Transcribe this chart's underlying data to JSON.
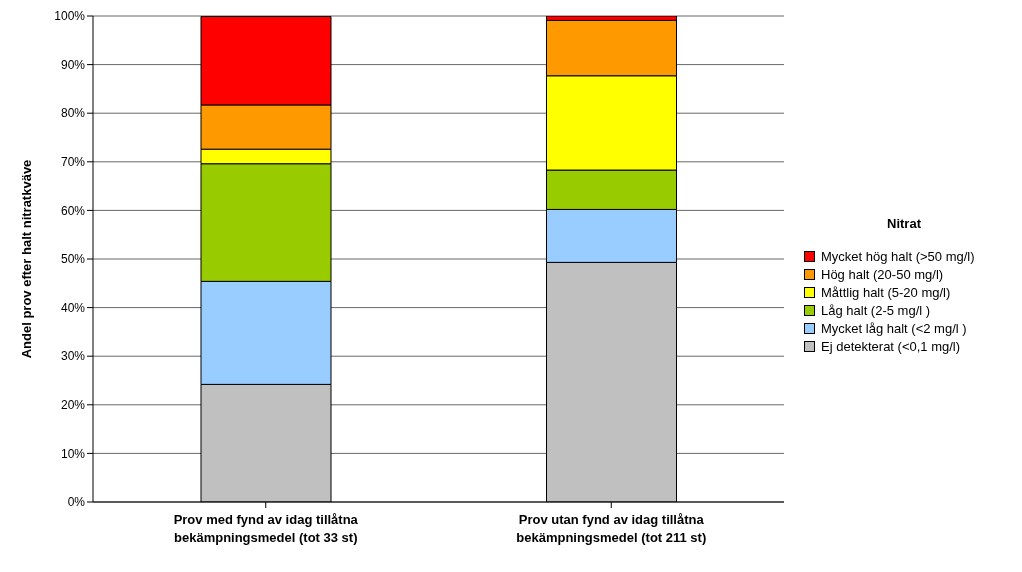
{
  "chart_data": {
    "type": "bar",
    "stacked": true,
    "ylabel": "Andel prov efter halt nitratkväve",
    "legend_title": "Nitrat",
    "legend": "right",
    "categories": [
      "Prov med fynd av idag tillåtna bekämpningsmedel (tot 33 st)",
      "Prov utan fynd av idag tillåtna bekämpningsmedel (tot 211 st)"
    ],
    "series": [
      {
        "name": "Ej detekterat (<0,1 mg/l)",
        "color": "#c0c0c0",
        "values": [
          24.2,
          49.3
        ]
      },
      {
        "name": "Mycket låg halt (<2 mg/l )",
        "color": "#99ccff",
        "values": [
          21.2,
          10.9
        ]
      },
      {
        "name": "Låg halt (2-5 mg/l )",
        "color": "#99cc00",
        "values": [
          24.2,
          8.1
        ]
      },
      {
        "name": "Måttlig halt (5-20 mg/l)",
        "color": "#ffff00",
        "values": [
          3.0,
          19.4
        ]
      },
      {
        "name": "Hög halt (20-50 mg/l)",
        "color": "#ff9900",
        "values": [
          9.1,
          11.4
        ]
      },
      {
        "name": "Mycket hög halt (>50 mg/l)",
        "color": "#ff0000",
        "values": [
          18.2,
          0.9
        ]
      }
    ],
    "ylim": [
      0,
      100
    ],
    "yticks": [
      {
        "value": 0,
        "label": "0%"
      },
      {
        "value": 10,
        "label": "10%"
      },
      {
        "value": 20,
        "label": "20%"
      },
      {
        "value": 30,
        "label": "30%"
      },
      {
        "value": 40,
        "label": "40%"
      },
      {
        "value": 50,
        "label": "50%"
      },
      {
        "value": 60,
        "label": "60%"
      },
      {
        "value": 70,
        "label": "70%"
      },
      {
        "value": 80,
        "label": "80%"
      },
      {
        "value": 90,
        "label": "90%"
      },
      {
        "value": 100,
        "label": "100%"
      }
    ],
    "grid": "y"
  }
}
